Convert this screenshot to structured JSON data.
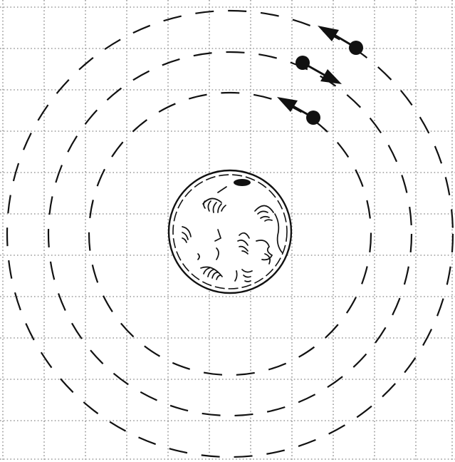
{
  "diagram": {
    "grid": {
      "visible": true,
      "style": "dotted"
    },
    "orbits": {
      "count": 3,
      "style": "dashed"
    },
    "planet": {
      "icon": "cratered-planet-icon"
    },
    "bodies": [
      {
        "name": "outer-orbit-body",
        "direction": "counterclockwise"
      },
      {
        "name": "middle-orbit-body",
        "direction": "clockwise"
      },
      {
        "name": "inner-orbit-body",
        "direction": "counterclockwise"
      }
    ],
    "colors": {
      "ink": "#111111",
      "grid": "#9a9a9a",
      "background": "#ffffff"
    }
  }
}
